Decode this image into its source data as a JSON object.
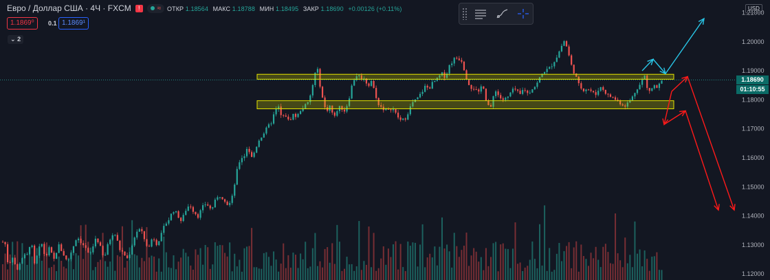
{
  "header": {
    "title": "Евро / Доллар США · 4Ч · FXCM",
    "ohlc": [
      {
        "k": "ОТКР",
        "v": "1.18564"
      },
      {
        "k": "МАКС",
        "v": "1.18788"
      },
      {
        "k": "МИН",
        "v": "1.18495"
      },
      {
        "k": "ЗАКР",
        "v": "1.18690"
      },
      {
        "k": "",
        "v": "+0.00126 (+0.11%)"
      }
    ]
  },
  "trade": {
    "sell": "1.1869⁰",
    "spread": "0.1",
    "buy": "1.1869¹"
  },
  "collapse_label": "2",
  "axis": {
    "currency": "USD",
    "last_price": "1.18690",
    "countdown": "01:10:55"
  },
  "toolbar": {
    "icons": [
      "grip-icon",
      "template-lines-icon",
      "brush-icon",
      "crosshair-icon"
    ]
  },
  "colors": {
    "bg": "#131722",
    "up": "#26a69a",
    "down": "#ef5350",
    "zone": "#e6e600",
    "bull_arrow": "#29c5e6",
    "bear_arrow": "#ff1a1a"
  },
  "chart_data": {
    "type": "candlestick",
    "symbol": "EURUSD",
    "timeframe": "4Ч",
    "ylim": [
      1.1179,
      1.2144
    ],
    "y_ticks": [
      "1.21000",
      "1.20000",
      "1.19000",
      "1.18000",
      "1.17000",
      "1.16000",
      "1.15000",
      "1.14000",
      "1.13000",
      "1.12000"
    ],
    "price_path": [
      [
        0,
        1.1275
      ],
      [
        6,
        1.1328
      ],
      [
        12,
        1.1228
      ],
      [
        18,
        1.1262
      ],
      [
        25,
        1.121
      ],
      [
        31,
        1.1255
      ],
      [
        40,
        1.1265
      ],
      [
        45,
        1.132
      ],
      [
        50,
        1.123
      ],
      [
        55,
        1.127
      ],
      [
        60,
        1.131
      ],
      [
        66,
        1.1255
      ],
      [
        72,
        1.129
      ],
      [
        78,
        1.1245
      ],
      [
        85,
        1.13
      ],
      [
        92,
        1.127
      ],
      [
        98,
        1.124
      ],
      [
        105,
        1.1285
      ],
      [
        112,
        1.133
      ],
      [
        118,
        1.131
      ],
      [
        124,
        1.129
      ],
      [
        130,
        1.126
      ],
      [
        136,
        1.13
      ],
      [
        140,
        1.133
      ],
      [
        146,
        1.129
      ],
      [
        151,
        1.125
      ],
      [
        157,
        1.13
      ],
      [
        163,
        1.134
      ],
      [
        168,
        1.1335
      ],
      [
        174,
        1.1285
      ],
      [
        180,
        1.127
      ],
      [
        186,
        1.125
      ],
      [
        192,
        1.13
      ],
      [
        198,
        1.1345
      ],
      [
        204,
        1.1355
      ],
      [
        210,
        1.132
      ],
      [
        216,
        1.1285
      ],
      [
        222,
        1.133
      ],
      [
        228,
        1.1305
      ],
      [
        234,
        1.133
      ],
      [
        240,
        1.137
      ],
      [
        246,
        1.139
      ],
      [
        252,
        1.142
      ],
      [
        258,
        1.1405
      ],
      [
        264,
        1.138
      ],
      [
        270,
        1.142
      ],
      [
        276,
        1.144
      ],
      [
        282,
        1.1415
      ],
      [
        288,
        1.14
      ],
      [
        295,
        1.143
      ],
      [
        300,
        1.1445
      ],
      [
        307,
        1.142
      ],
      [
        314,
        1.1455
      ],
      [
        320,
        1.147
      ],
      [
        326,
        1.146
      ],
      [
        332,
        1.1435
      ],
      [
        337,
        1.1455
      ],
      [
        342,
        1.152
      ],
      [
        346,
        1.157
      ],
      [
        350,
        1.16
      ],
      [
        355,
        1.1605
      ],
      [
        360,
        1.164
      ],
      [
        366,
        1.16
      ],
      [
        370,
        1.162
      ],
      [
        376,
        1.166
      ],
      [
        382,
        1.168
      ],
      [
        388,
        1.17
      ],
      [
        394,
        1.172
      ],
      [
        400,
        1.176
      ],
      [
        405,
        1.1775
      ],
      [
        410,
        1.1735
      ],
      [
        415,
        1.175
      ],
      [
        420,
        1.1725
      ],
      [
        426,
        1.175
      ],
      [
        432,
        1.174
      ],
      [
        438,
        1.177
      ],
      [
        444,
        1.178
      ],
      [
        449,
        1.179
      ],
      [
        454,
        1.184
      ],
      [
        458,
        1.189
      ],
      [
        462,
        1.19
      ],
      [
        466,
        1.1845
      ],
      [
        470,
        1.1795
      ],
      [
        474,
        1.176
      ],
      [
        480,
        1.178
      ],
      [
        486,
        1.1735
      ],
      [
        491,
        1.177
      ],
      [
        496,
        1.1775
      ],
      [
        502,
        1.176
      ],
      [
        508,
        1.181
      ],
      [
        513,
        1.186
      ],
      [
        518,
        1.1885
      ],
      [
        524,
        1.188
      ],
      [
        530,
        1.187
      ],
      [
        536,
        1.185
      ],
      [
        541,
        1.187
      ],
      [
        546,
        1.181
      ],
      [
        552,
        1.178
      ],
      [
        558,
        1.177
      ],
      [
        564,
        1.176
      ],
      [
        570,
        1.1775
      ],
      [
        576,
        1.175
      ],
      [
        582,
        1.173
      ],
      [
        588,
        1.173
      ],
      [
        594,
        1.176
      ],
      [
        600,
        1.179
      ],
      [
        606,
        1.18
      ],
      [
        612,
        1.182
      ],
      [
        618,
        1.1845
      ],
      [
        624,
        1.184
      ],
      [
        630,
        1.186
      ],
      [
        636,
        1.187
      ],
      [
        642,
        1.189
      ],
      [
        648,
        1.188
      ],
      [
        654,
        1.192
      ],
      [
        660,
        1.194
      ],
      [
        666,
        1.1945
      ],
      [
        672,
        1.1935
      ],
      [
        678,
        1.188
      ],
      [
        684,
        1.1845
      ],
      [
        690,
        1.184
      ],
      [
        696,
        1.182
      ],
      [
        702,
        1.186
      ],
      [
        708,
        1.179
      ],
      [
        714,
        1.177
      ],
      [
        720,
        1.184
      ],
      [
        726,
        1.181
      ],
      [
        732,
        1.18
      ],
      [
        738,
        1.1805
      ],
      [
        744,
        1.183
      ],
      [
        750,
        1.1835
      ],
      [
        756,
        1.1815
      ],
      [
        762,
        1.184
      ],
      [
        768,
        1.182
      ],
      [
        774,
        1.184
      ],
      [
        780,
        1.185
      ],
      [
        786,
        1.188
      ],
      [
        792,
        1.19
      ],
      [
        798,
        1.1905
      ],
      [
        804,
        1.1925
      ],
      [
        810,
        1.195
      ],
      [
        815,
        1.1975
      ],
      [
        820,
        1.2005
      ],
      [
        825,
        1.198
      ],
      [
        830,
        1.1925
      ],
      [
        836,
        1.189
      ],
      [
        842,
        1.185
      ],
      [
        848,
        1.1835
      ],
      [
        854,
        1.184
      ],
      [
        860,
        1.183
      ],
      [
        866,
        1.1815
      ],
      [
        872,
        1.1845
      ],
      [
        878,
        1.1835
      ],
      [
        884,
        1.1815
      ],
      [
        890,
        1.181
      ],
      [
        896,
        1.18
      ],
      [
        902,
        1.179
      ],
      [
        908,
        1.178
      ],
      [
        914,
        1.179
      ],
      [
        920,
        1.181
      ],
      [
        926,
        1.184
      ],
      [
        932,
        1.1855
      ],
      [
        937,
        1.189
      ],
      [
        941,
        1.184
      ],
      [
        946,
        1.183
      ],
      [
        951,
        1.185
      ],
      [
        956,
        1.184
      ],
      [
        961,
        1.186
      ],
      [
        966,
        1.1869
      ]
    ],
    "zones": [
      {
        "x_from": 374,
        "x_to": 980,
        "low": 1.1871,
        "high": 1.1888
      },
      {
        "x_from": 374,
        "x_to": 980,
        "low": 1.1769,
        "high": 1.1797
      }
    ],
    "arrows_bullish": [
      [
        [
          934,
          1.19
        ],
        [
          950,
          1.194
        ]
      ],
      [
        [
          950,
          1.194
        ],
        [
          968,
          1.189
        ]
      ],
      [
        [
          968,
          1.189
        ],
        [
          1024,
          1.208
        ]
      ]
    ],
    "arrows_bearish": [
      [
        [
          977,
          1.1829
        ],
        [
          1000,
          1.188
        ]
      ],
      [
        [
          977,
          1.1829
        ],
        [
          966,
          1.1715
        ]
      ],
      [
        [
          966,
          1.1715
        ],
        [
          997,
          1.1762
        ]
      ],
      [
        [
          997,
          1.1762
        ],
        [
          1045,
          1.142
        ]
      ],
      [
        [
          1000,
          1.188
        ],
        [
          1068,
          1.142
        ]
      ]
    ]
  }
}
